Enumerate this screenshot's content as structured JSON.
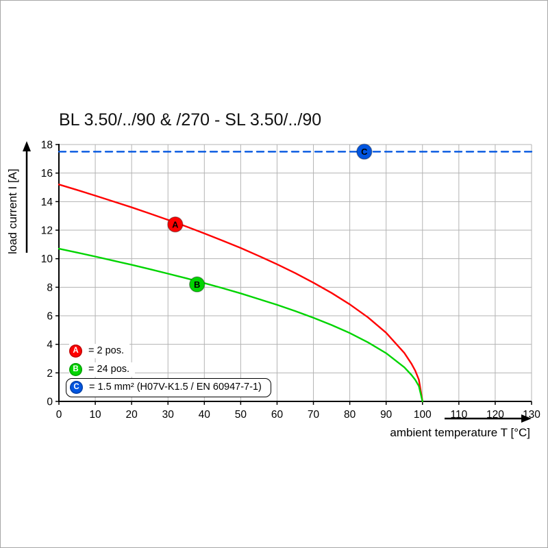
{
  "page": {
    "background": "#ffffff",
    "border_color": "#a6a6a6"
  },
  "chart_data": {
    "type": "line",
    "title": "BL 3.50/../90 & /270 - SL 3.50/../90",
    "xlabel": "ambient temperature T [°C]",
    "ylabel": "load current I [A]",
    "xlim": [
      0,
      130
    ],
    "ylim": [
      0,
      18
    ],
    "x_ticks": [
      0,
      10,
      20,
      30,
      40,
      50,
      60,
      70,
      80,
      90,
      100,
      110,
      120,
      130
    ],
    "y_ticks": [
      0,
      2,
      4,
      6,
      8,
      10,
      12,
      14,
      16,
      18
    ],
    "grid": true,
    "grid_color": "#b3b3b3",
    "legend_position": "bottom-left",
    "series": [
      {
        "name": "A",
        "label": "= 2 pos.",
        "color": "#ff0000",
        "style": "solid",
        "marker_pos": [
          32,
          12.4
        ],
        "points": [
          [
            0,
            15.2
          ],
          [
            5,
            14.82
          ],
          [
            10,
            14.42
          ],
          [
            15,
            14.01
          ],
          [
            20,
            13.6
          ],
          [
            25,
            13.16
          ],
          [
            30,
            12.72
          ],
          [
            35,
            12.26
          ],
          [
            40,
            11.77
          ],
          [
            45,
            11.27
          ],
          [
            50,
            10.75
          ],
          [
            55,
            10.19
          ],
          [
            60,
            9.61
          ],
          [
            65,
            8.99
          ],
          [
            70,
            8.32
          ],
          [
            75,
            7.6
          ],
          [
            80,
            6.8
          ],
          [
            85,
            5.89
          ],
          [
            90,
            4.81
          ],
          [
            95,
            3.4
          ],
          [
            97,
            2.63
          ],
          [
            98,
            2.15
          ],
          [
            99,
            1.52
          ],
          [
            100,
            0
          ]
        ]
      },
      {
        "name": "B",
        "label": "= 24 pos.",
        "color": "#00d400",
        "style": "solid",
        "marker_pos": [
          38,
          8.2
        ],
        "points": [
          [
            0,
            10.7
          ],
          [
            5,
            10.43
          ],
          [
            10,
            10.15
          ],
          [
            15,
            9.86
          ],
          [
            20,
            9.57
          ],
          [
            25,
            9.27
          ],
          [
            30,
            8.95
          ],
          [
            35,
            8.63
          ],
          [
            40,
            8.29
          ],
          [
            45,
            7.94
          ],
          [
            50,
            7.57
          ],
          [
            55,
            7.17
          ],
          [
            60,
            6.77
          ],
          [
            65,
            6.33
          ],
          [
            70,
            5.86
          ],
          [
            75,
            5.35
          ],
          [
            80,
            4.79
          ],
          [
            85,
            4.14
          ],
          [
            90,
            3.38
          ],
          [
            95,
            2.39
          ],
          [
            97,
            1.85
          ],
          [
            98,
            1.51
          ],
          [
            99,
            1.07
          ],
          [
            100,
            0
          ]
        ]
      },
      {
        "name": "C",
        "label": "= 1.5 mm² (H07V-K1.5 / EN 60947-7-1)",
        "color": "#0055e0",
        "style": "dashed",
        "marker_pos": [
          84,
          17.5
        ],
        "points": [
          [
            0,
            17.5
          ],
          [
            130,
            17.5
          ]
        ]
      }
    ]
  }
}
